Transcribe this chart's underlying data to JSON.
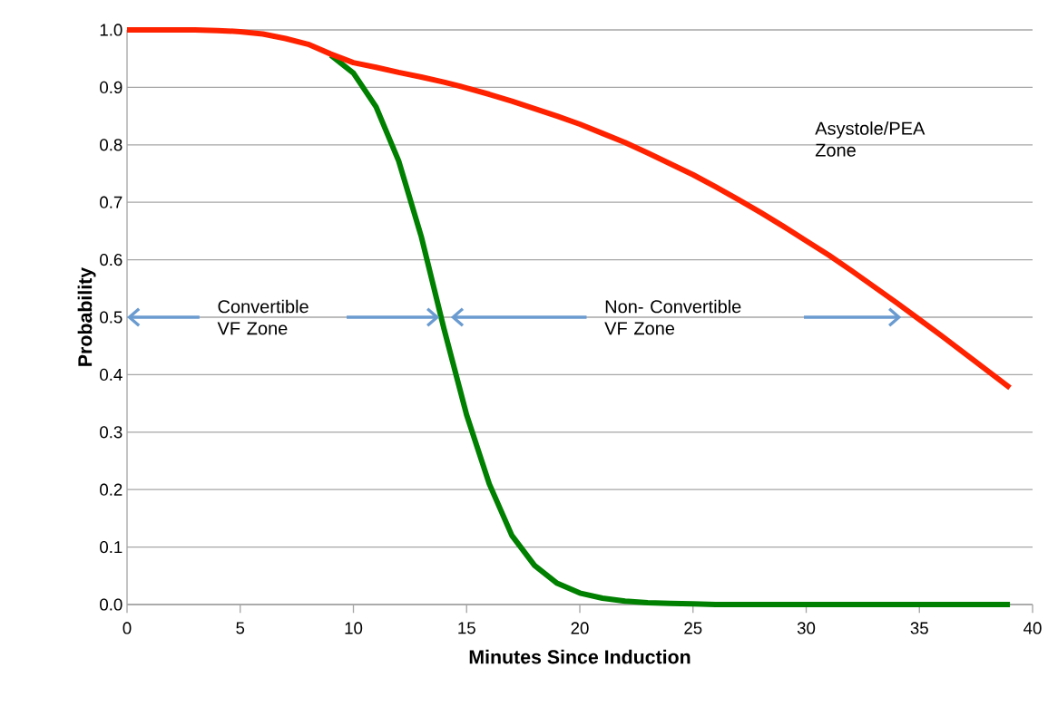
{
  "chart_data": {
    "type": "line",
    "xlabel": "Minutes Since Induction",
    "ylabel": "Probability",
    "x": [
      0,
      1,
      2,
      3,
      4,
      5,
      6,
      7,
      8,
      9,
      10,
      11,
      12,
      13,
      14,
      15,
      16,
      17,
      18,
      19,
      20,
      21,
      22,
      23,
      24,
      25,
      26,
      27,
      28,
      29,
      30,
      31,
      32,
      33,
      34,
      35,
      36,
      37,
      38,
      39
    ],
    "series": [
      {
        "color": "#ff2200",
        "values": [
          1.0,
          1.0,
          1.0,
          1.0,
          0.999,
          0.997,
          0.993,
          0.985,
          0.975,
          0.958,
          0.943,
          0.935,
          0.926,
          0.918,
          0.909,
          0.899,
          0.888,
          0.876,
          0.863,
          0.85,
          0.836,
          0.82,
          0.804,
          0.786,
          0.767,
          0.748,
          0.727,
          0.705,
          0.682,
          0.658,
          0.633,
          0.608,
          0.581,
          0.553,
          0.525,
          0.496,
          0.467,
          0.437,
          0.407,
          0.377
        ]
      },
      {
        "color": "#008000",
        "values": [
          null,
          null,
          null,
          null,
          null,
          null,
          null,
          null,
          null,
          0.956,
          0.925,
          0.866,
          0.772,
          0.64,
          0.48,
          0.33,
          0.21,
          0.12,
          0.068,
          0.037,
          0.02,
          0.011,
          0.006,
          0.003,
          0.002,
          0.001,
          0,
          0,
          0,
          0,
          0,
          0,
          0,
          0,
          0,
          0,
          0,
          0,
          0,
          0
        ]
      }
    ],
    "xlim": [
      0,
      40
    ],
    "xticks": [
      0,
      5,
      10,
      15,
      20,
      25,
      30,
      35,
      40
    ],
    "ylim": [
      0,
      1
    ],
    "yticks": [
      {
        "value": 0,
        "label": "0.0"
      },
      {
        "value": 0.1,
        "label": "0.1"
      },
      {
        "value": 0.2,
        "label": "0.2"
      },
      {
        "value": 0.3,
        "label": "0.3"
      },
      {
        "value": 0.4,
        "label": "0.4"
      },
      {
        "value": 0.5,
        "label": "0.5"
      },
      {
        "value": 0.6,
        "label": "0.6"
      },
      {
        "value": 0.7,
        "label": "0.7"
      },
      {
        "value": 0.8,
        "label": "0.8"
      },
      {
        "value": 0.9,
        "label": "0.9"
      },
      {
        "value": 1.0,
        "label": "1.0"
      }
    ],
    "grid": "y",
    "marker": "none",
    "line_style": "solid",
    "annotations": [
      "Convertible VF Zone",
      "Non- Convertible VF Zone",
      "Asystole/PEA Zone"
    ]
  }
}
